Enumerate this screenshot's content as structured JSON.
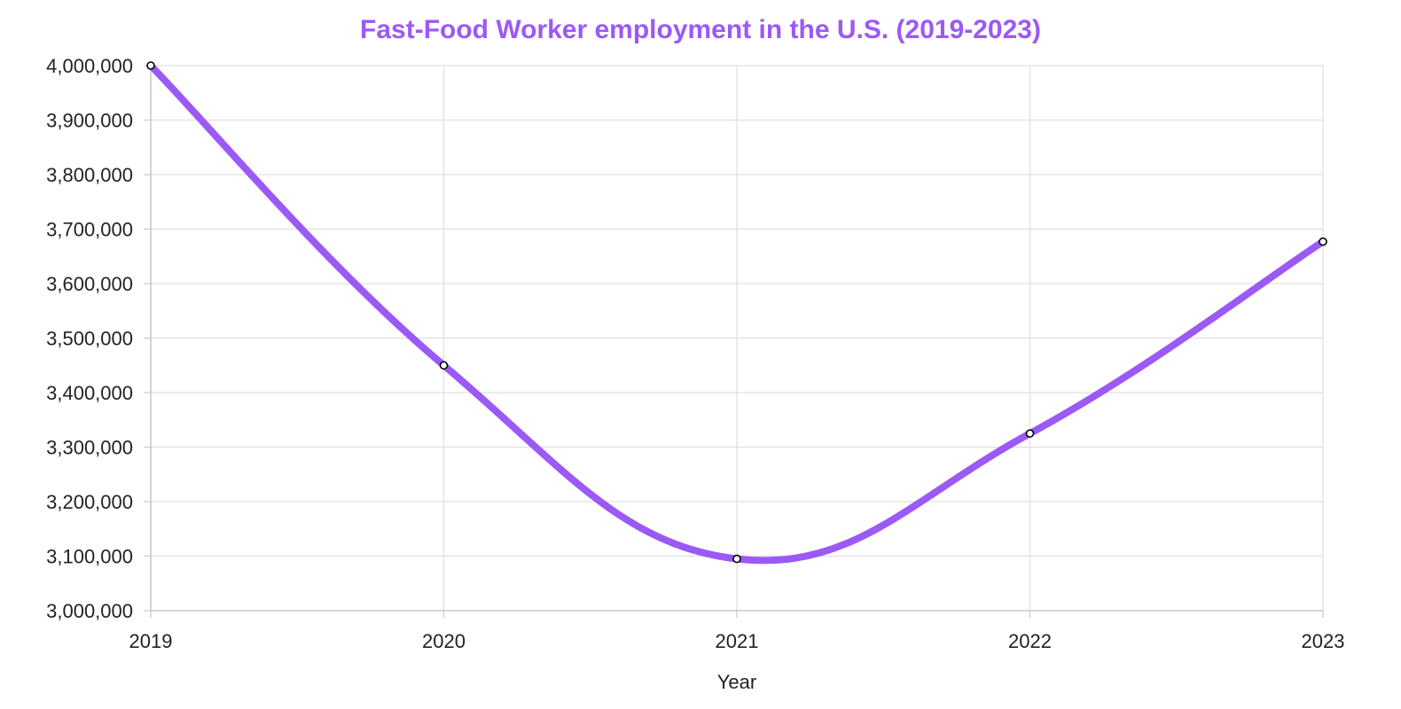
{
  "chart_data": {
    "type": "line",
    "title": "Fast-Food Worker employment in the U.S. (2019-2023)",
    "xlabel": "Year",
    "ylabel": "",
    "categories": [
      "2019",
      "2020",
      "2021",
      "2022",
      "2023"
    ],
    "series": [
      {
        "values": [
          4000000,
          3450000,
          3095000,
          3325000,
          3677000
        ]
      }
    ],
    "ylim": [
      3000000,
      4000000
    ],
    "yticks": [
      3000000,
      3100000,
      3200000,
      3300000,
      3400000,
      3500000,
      3600000,
      3700000,
      3800000,
      3900000,
      4000000
    ],
    "ytick_labels": [
      "3,000,000",
      "3,100,000",
      "3,200,000",
      "3,300,000",
      "3,400,000",
      "3,500,000",
      "3,600,000",
      "3,700,000",
      "3,800,000",
      "3,900,000",
      "4,000,000"
    ],
    "grid": true,
    "legend": "none",
    "colors": {
      "title": "#9b59f5",
      "line": "#9b59f5",
      "point_fill": "#ffffff",
      "point_stroke": "#000000",
      "grid": "#e0e0e0",
      "axis": "#c8c8c8"
    }
  }
}
